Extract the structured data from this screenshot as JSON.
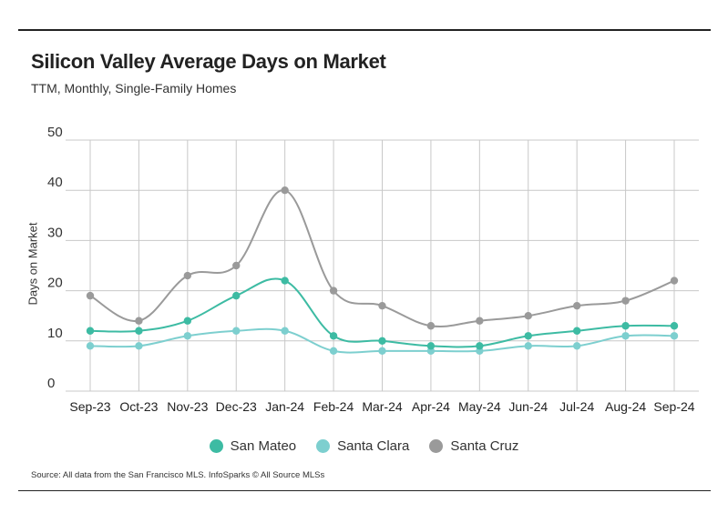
{
  "chart_data": {
    "type": "line",
    "title": "Silicon Valley Average Days on Market",
    "subtitle": "TTM, Monthly, Single-Family Homes",
    "xlabel": "",
    "ylabel": "Days on Market",
    "ylim": [
      0,
      50
    ],
    "yticks": [
      "0",
      "10",
      "20",
      "30",
      "40",
      "50"
    ],
    "grid": true,
    "legend_position": "bottom-center",
    "categories": [
      "Sep-23",
      "Oct-23",
      "Nov-23",
      "Dec-23",
      "Jan-24",
      "Feb-24",
      "Mar-24",
      "Apr-24",
      "May-24",
      "Jun-24",
      "Jul-24",
      "Aug-24",
      "Sep-24"
    ],
    "series": [
      {
        "name": "San Mateo",
        "color": "#3dbba3",
        "values": [
          12,
          12,
          14,
          19,
          22,
          11,
          10,
          9,
          9,
          11,
          12,
          13,
          13
        ]
      },
      {
        "name": "Santa Clara",
        "color": "#7dcfcf",
        "values": [
          9,
          9,
          11,
          12,
          12,
          8,
          8,
          8,
          8,
          9,
          9,
          11,
          11
        ]
      },
      {
        "name": "Santa Cruz",
        "color": "#9a9a9a",
        "values": [
          19,
          14,
          23,
          25,
          40,
          20,
          17,
          13,
          14,
          15,
          17,
          18,
          22
        ]
      }
    ]
  },
  "source": "Source:  All data from the San Francisco MLS. InfoSparks © All Source MLSs"
}
